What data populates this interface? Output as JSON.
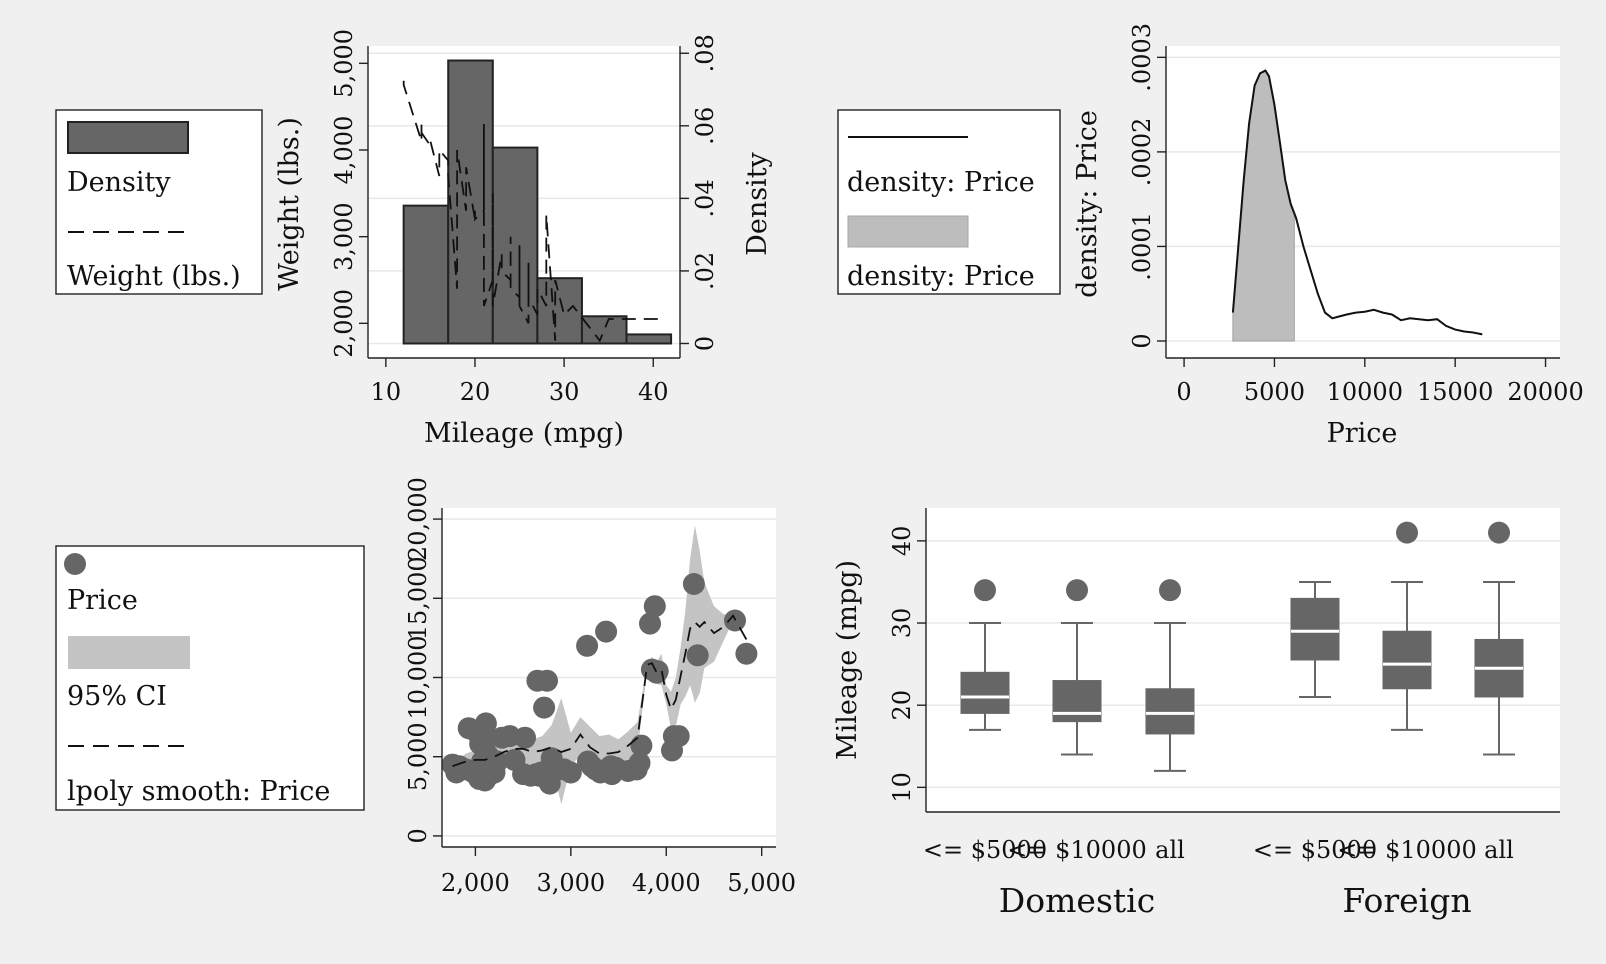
{
  "colors": {
    "background": "#f0f0f0",
    "panel": "#ffffff",
    "dark_gray": "#666666",
    "light_gray": "#bdbdbd",
    "line": "#111111"
  },
  "chart_data": [
    {
      "type": "bar",
      "id": "histogram-weight",
      "xlabel": "Mileage (mpg)",
      "ylabel": "Weight (lbs.)",
      "y2label": "Density",
      "xlim": [
        8,
        43
      ],
      "ylim": [
        1600,
        5200
      ],
      "y2lim": [
        -0.004,
        0.082
      ],
      "x_ticks": [
        10,
        20,
        30,
        40
      ],
      "x_tick_labels": [
        "10",
        "20",
        "30",
        "40"
      ],
      "y_ticks": [
        2000,
        3000,
        4000,
        5000
      ],
      "y_tick_labels": [
        "2,000",
        "3,000",
        "4,000",
        "5,000"
      ],
      "y2_ticks": [
        0,
        0.02,
        0.04,
        0.06,
        0.08
      ],
      "y2_tick_labels": [
        "0",
        ".02",
        ".04",
        ".06",
        ".08"
      ],
      "grid": true,
      "legend_placement": "left",
      "legend": [
        "Density",
        "Weight (lbs.)"
      ],
      "bins": [
        {
          "from": 12,
          "to": 17,
          "density": 0.038
        },
        {
          "from": 17,
          "to": 22,
          "density": 0.078
        },
        {
          "from": 22,
          "to": 27,
          "density": 0.054
        },
        {
          "from": 27,
          "to": 32,
          "density": 0.018
        },
        {
          "from": 32,
          "to": 37,
          "density": 0.0075
        },
        {
          "from": 37,
          "to": 42,
          "density": 0.0025
        }
      ],
      "weight_series": {
        "name": "Weight (lbs.)",
        "x": [
          12,
          12,
          14,
          14,
          14,
          15,
          15,
          16,
          16,
          17,
          17,
          17,
          18,
          18,
          18,
          19,
          19,
          19,
          20,
          20,
          20,
          21,
          21,
          21,
          22,
          22,
          22,
          23,
          23,
          24,
          24,
          24,
          25,
          25,
          25,
          26,
          26,
          26,
          27,
          27,
          28,
          28,
          28,
          29,
          29,
          30,
          30,
          31,
          31,
          34,
          35,
          35,
          41
        ],
        "y": [
          4800,
          4750,
          4100,
          4300,
          4200,
          4050,
          4100,
          3700,
          4000,
          3880,
          3700,
          3700,
          2400,
          3500,
          4000,
          3300,
          3700,
          3800,
          3200,
          3300,
          3200,
          3300,
          4300,
          2200,
          2500,
          3500,
          2200,
          2800,
          2600,
          2500,
          3000,
          2400,
          2300,
          2900,
          2200,
          2000,
          2700,
          2300,
          2100,
          2400,
          2200,
          2600,
          3250,
          1800,
          2500,
          2100,
          2100,
          2200,
          2200,
          1800,
          2050,
          2050,
          2050
        ]
      }
    },
    {
      "type": "area",
      "id": "kdensity-price",
      "xlabel": "Price",
      "ylabel": "density: Price",
      "xlim": [
        -1000,
        20800
      ],
      "ylim": [
        -1.8e-05,
        0.000312
      ],
      "x_ticks": [
        0,
        5000,
        10000,
        15000,
        20000
      ],
      "x_tick_labels": [
        "0",
        "5000",
        "10000",
        "15000",
        "20000"
      ],
      "y_ticks": [
        0,
        0.0001,
        0.0002,
        0.0003
      ],
      "y_tick_labels": [
        "0",
        ".0001",
        ".0002",
        ".0003"
      ],
      "grid": true,
      "legend_placement": "left",
      "legend": [
        "density: Price",
        "density: Price"
      ],
      "shade_range": [
        2700,
        6100
      ],
      "x": [
        2700,
        3000,
        3300,
        3600,
        3900,
        4200,
        4500,
        4700,
        5000,
        5300,
        5600,
        5900,
        6200,
        6600,
        7000,
        7400,
        7800,
        8200,
        8600,
        9000,
        9500,
        10000,
        10500,
        11000,
        11500,
        12000,
        12500,
        13000,
        13500,
        14000,
        14500,
        15000,
        15500,
        16000,
        16500
      ],
      "y": [
        3e-05,
        0.0001,
        0.00017,
        0.00023,
        0.00027,
        0.000283,
        0.000286,
        0.00028,
        0.00025,
        0.00021,
        0.00017,
        0.000145,
        0.00013,
        0.0001,
        7.5e-05,
        5e-05,
        3e-05,
        2.4e-05,
        2.6e-05,
        2.8e-05,
        3e-05,
        3.1e-05,
        3.3e-05,
        3e-05,
        2.8e-05,
        2.2e-05,
        2.4e-05,
        2.3e-05,
        2.2e-05,
        2.3e-05,
        1.6e-05,
        1.2e-05,
        1e-05,
        9e-06,
        7e-06
      ]
    },
    {
      "type": "scatter",
      "id": "lpoly-price",
      "xlim": [
        1650,
        5150
      ],
      "ylim": [
        -700,
        20700
      ],
      "x_ticks": [
        2000,
        3000,
        4000,
        5000
      ],
      "x_tick_labels": [
        "2,000",
        "3,000",
        "4,000",
        "5,000"
      ],
      "y_ticks": [
        0,
        5000,
        10000,
        15000,
        20000
      ],
      "y_tick_labels": [
        "0",
        "5,000",
        "10,000",
        "15,000",
        "20,000"
      ],
      "grid": true,
      "legend_placement": "left",
      "legend": [
        "Price",
        "95% CI",
        "lpoly smooth: Price"
      ],
      "points": {
        "x": [
          1760,
          1800,
          1830,
          1900,
          1930,
          1980,
          2020,
          2040,
          2050,
          2070,
          2100,
          2110,
          2120,
          2130,
          2160,
          2200,
          2230,
          2280,
          2360,
          2410,
          2500,
          2520,
          2580,
          2640,
          2650,
          2670,
          2690,
          2720,
          2730,
          2750,
          2780,
          2800,
          2830,
          2930,
          3000,
          3170,
          3180,
          3220,
          3260,
          3310,
          3370,
          3400,
          3420,
          3430,
          3470,
          3600,
          3690,
          3720,
          3740,
          3830,
          3850,
          3880,
          3900,
          3910,
          4060,
          4080,
          4130,
          4290,
          4330,
          4720,
          4840
        ],
        "y": [
          4500,
          4000,
          4400,
          4200,
          6800,
          4000,
          6500,
          3600,
          5800,
          4700,
          3500,
          7100,
          6100,
          5100,
          3900,
          4000,
          4700,
          6200,
          6300,
          4800,
          3900,
          6200,
          3800,
          3900,
          9800,
          3800,
          4000,
          8100,
          3700,
          9800,
          3300,
          4900,
          4100,
          4200,
          4000,
          12000,
          4700,
          4400,
          4200,
          4000,
          12900,
          4300,
          4400,
          3900,
          4300,
          4100,
          4200,
          4600,
          5700,
          13400,
          10500,
          14500,
          10300,
          10400,
          5400,
          6300,
          6300,
          15900,
          11400,
          13600,
          11500
        ]
      },
      "smooth": {
        "x": [
          1760,
          1900,
          2000,
          2100,
          2200,
          2300,
          2400,
          2500,
          2600,
          2700,
          2800,
          2900,
          3000,
          3100,
          3200,
          3300,
          3400,
          3500,
          3600,
          3700,
          3800,
          3850,
          3900,
          3950,
          4000,
          4050,
          4100,
          4150,
          4200,
          4250,
          4300,
          4350,
          4400,
          4500,
          4600,
          4700,
          4840
        ],
        "y": [
          4400,
          4700,
          4800,
          4800,
          5000,
          5300,
          5500,
          5500,
          5300,
          5400,
          5600,
          5300,
          5500,
          6400,
          5600,
          5200,
          5200,
          5300,
          5700,
          6200,
          10800,
          10900,
          10300,
          10500,
          8900,
          8000,
          8600,
          10100,
          11500,
          13100,
          13500,
          13200,
          13500,
          12800,
          13200,
          13900,
          12400
        ]
      },
      "ci_upper": [
        4500,
        5200,
        5400,
        5500,
        5800,
        6000,
        6400,
        6500,
        6100,
        6300,
        7000,
        8700,
        6500,
        7500,
        6900,
        6300,
        6400,
        6100,
        6600,
        7200,
        10900,
        11300,
        11000,
        11500,
        9500,
        9100,
        10000,
        11900,
        14200,
        17500,
        19600,
        18000,
        16000,
        14500,
        14000,
        14000,
        12400
      ],
      "ci_lower": [
        4100,
        4300,
        4200,
        4100,
        4300,
        4500,
        4700,
        4500,
        4300,
        4400,
        4500,
        2000,
        4400,
        5100,
        4400,
        4200,
        4200,
        4400,
        4700,
        5400,
        10500,
        10400,
        9600,
        9500,
        8300,
        6800,
        6900,
        8300,
        8800,
        9500,
        8400,
        9000,
        10600,
        11000,
        12300,
        13600,
        12400
      ]
    },
    {
      "type": "box",
      "id": "box-mileage",
      "ylabel": "Mileage (mpg)",
      "ylim": [
        7,
        44
      ],
      "y_ticks": [
        10,
        20,
        30,
        40
      ],
      "y_tick_labels": [
        "10",
        "20",
        "30",
        "40"
      ],
      "grid": true,
      "groups": [
        {
          "label": "Domestic",
          "boxes": [
            {
              "label": "<= $5000",
              "min": 17,
              "q1": 19,
              "median": 21,
              "q3": 24,
              "max": 30,
              "outliers": [
                34
              ]
            },
            {
              "label": "<= $10000",
              "min": 14,
              "q1": 18,
              "median": 19,
              "q3": 23,
              "max": 30,
              "outliers": [
                34
              ]
            },
            {
              "label": "all",
              "min": 12,
              "q1": 16.5,
              "median": 19,
              "q3": 22,
              "max": 30,
              "outliers": [
                34
              ]
            }
          ]
        },
        {
          "label": "Foreign",
          "boxes": [
            {
              "label": "<= $5000",
              "min": 21,
              "q1": 25.5,
              "median": 29,
              "q3": 33,
              "max": 35,
              "outliers": []
            },
            {
              "label": "<= $10000",
              "min": 17,
              "q1": 22,
              "median": 25,
              "q3": 29,
              "max": 35,
              "outliers": [
                41
              ]
            },
            {
              "label": "all",
              "min": 14,
              "q1": 21,
              "median": 24.5,
              "q3": 28,
              "max": 35,
              "outliers": [
                41
              ]
            }
          ]
        }
      ]
    }
  ]
}
